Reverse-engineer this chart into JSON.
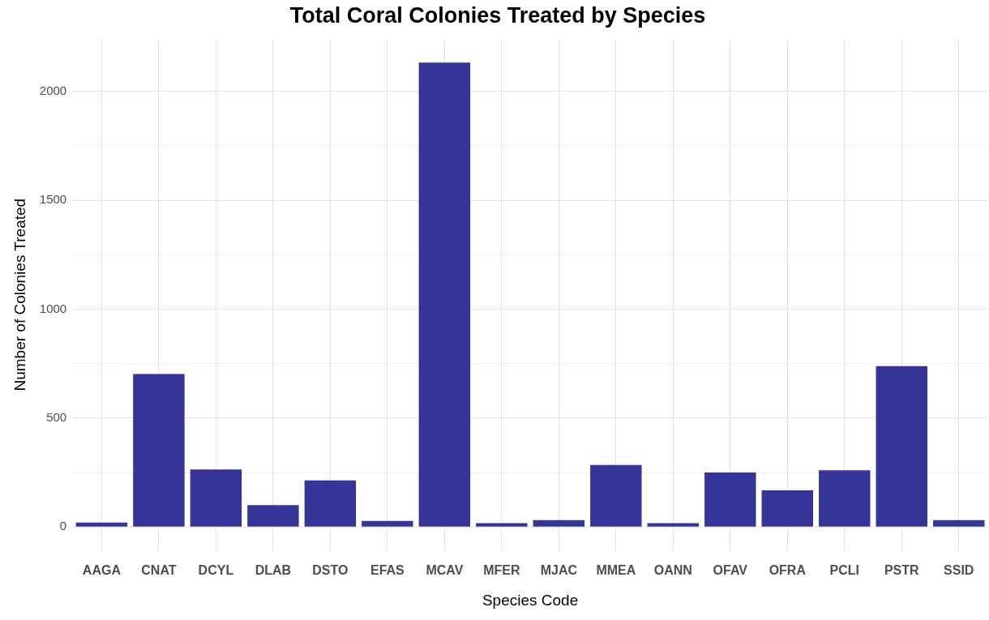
{
  "chart_data": {
    "type": "bar",
    "title": "Total Coral Colonies Treated by Species",
    "xlabel": "Species Code",
    "ylabel": "Number of Colonies Treated",
    "categories": [
      "AAGA",
      "CNAT",
      "DCYL",
      "DLAB",
      "DSTO",
      "EFAS",
      "MCAV",
      "MFER",
      "MJAC",
      "MMEA",
      "OANN",
      "OFAV",
      "OFRA",
      "PCLI",
      "PSTR",
      "SSID"
    ],
    "values": [
      20,
      702,
      264,
      100,
      214,
      28,
      2132,
      18,
      32,
      285,
      18,
      250,
      168,
      260,
      738,
      32
    ],
    "color": "#353598",
    "ylim": [
      -107,
      2239
    ],
    "yticks": [
      0,
      {
        "value": 250,
        "label": null
      },
      500,
      {
        "value": 750,
        "label": null
      },
      1000,
      {
        "value": 1250,
        "label": null
      },
      1500,
      {
        "value": 1750,
        "label": null
      },
      2000
    ],
    "grid": true,
    "legend": false
  }
}
